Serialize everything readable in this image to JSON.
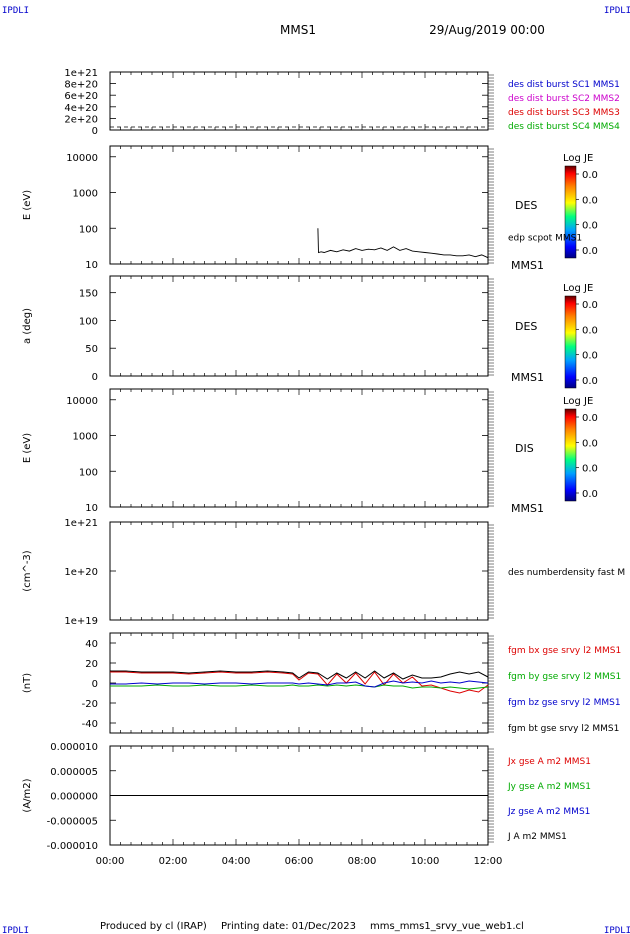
{
  "header": {
    "corner_left": "IPDLI",
    "corner_right": "IPDLI",
    "spacecraft": "MMS1",
    "date": "29/Aug/2019 00:00",
    "footer_producer": "Produced by cl (IRAP)",
    "footer_print": "Printing date: 01/Dec/2023",
    "footer_file": "mms_mms1_srvy_vue_web1.cl",
    "bottom_left": "IPDLI",
    "bottom_right": "IPDLI"
  },
  "colors": {
    "mms1": "#0000cc",
    "mms2": "#cc00cc",
    "mms3": "#dd0000",
    "mms4": "#00aa00",
    "bx": "#dd0000",
    "by": "#00aa00",
    "bz": "#0000cc",
    "bt": "#000000"
  },
  "chart_data": [
    {
      "type": "line",
      "panel": "burst",
      "yticks": [
        "1e+21",
        "8e+20",
        "6e+20",
        "4e+20",
        "2e+20",
        "0"
      ],
      "ylim": [
        0,
        1e+21
      ],
      "series": [],
      "legend": [
        {
          "label": "des dist burst SC1 MMS1",
          "color": "#0000cc"
        },
        {
          "label": "des dist burst SC2 MMS2",
          "color": "#cc00cc"
        },
        {
          "label": "des dist burst SC3 MMS3",
          "color": "#dd0000"
        },
        {
          "label": "des dist burst SC4 MMS4",
          "color": "#00aa00"
        }
      ]
    },
    {
      "type": "heatmap",
      "panel": "des-energy",
      "ylabel": "E (eV)",
      "scale": "log",
      "yticks": [
        "10000",
        "1000",
        "100",
        "10"
      ],
      "ylim": [
        10,
        20000
      ],
      "label": "DES",
      "sublabel": "MMS1",
      "colorbar_title": "Log JE",
      "colorbar_ticks": [
        "0.0",
        "0.0",
        "0.0",
        "0.0"
      ],
      "overlay_label": "edp scpot MMS1",
      "overlay": {
        "x": [
          6.6,
          6.62,
          6.7,
          6.8,
          7.0,
          7.2,
          7.4,
          7.6,
          7.8,
          8.0,
          8.2,
          8.4,
          8.6,
          8.8,
          9.0,
          9.2,
          9.4,
          9.6,
          9.8,
          10.0,
          10.2,
          10.4,
          10.6,
          10.8,
          11.0,
          11.2,
          11.4,
          11.6,
          11.8,
          12.0
        ],
        "y": [
          100,
          21,
          22,
          21,
          24,
          22,
          25,
          23,
          27,
          24,
          26,
          25,
          28,
          24,
          30,
          24,
          27,
          23,
          22,
          21,
          20,
          19,
          18,
          18,
          17,
          17,
          18,
          16,
          18,
          15
        ]
      }
    },
    {
      "type": "heatmap",
      "panel": "des-pitch",
      "ylabel": "a (deg)",
      "yticks": [
        "150",
        "100",
        "50",
        "0"
      ],
      "ylim": [
        0,
        180
      ],
      "label": "DES",
      "sublabel": "MMS1",
      "colorbar_title": "Log JE",
      "colorbar_ticks": [
        "0.0",
        "0.0",
        "0.0",
        "0.0"
      ]
    },
    {
      "type": "heatmap",
      "panel": "dis-energy",
      "ylabel": "E (eV)",
      "scale": "log",
      "yticks": [
        "10000",
        "1000",
        "100",
        "10"
      ],
      "ylim": [
        10,
        20000
      ],
      "label": "DIS",
      "sublabel": "MMS1",
      "colorbar_title": "Log JE",
      "colorbar_ticks": [
        "0.0",
        "0.0",
        "0.0",
        "0.0"
      ]
    },
    {
      "type": "line",
      "panel": "density",
      "ylabel": "(cm^-3)",
      "scale": "log",
      "yticks": [
        "1e+21",
        "1e+20",
        "1e+19"
      ],
      "ylim": [
        1e+19,
        1e+21
      ],
      "label": "des numberdensity fast M",
      "series": []
    },
    {
      "type": "line",
      "panel": "fgm",
      "ylabel": "(nT)",
      "yticks": [
        "40",
        "20",
        "0",
        "-20",
        "-40"
      ],
      "ylim": [
        -50,
        50
      ],
      "x": [
        0.0,
        0.5,
        1.0,
        1.5,
        2.0,
        2.5,
        3.0,
        3.5,
        4.0,
        4.5,
        5.0,
        5.5,
        5.8,
        6.0,
        6.3,
        6.6,
        6.9,
        7.2,
        7.5,
        7.8,
        8.1,
        8.4,
        8.7,
        9.0,
        9.3,
        9.6,
        9.9,
        10.2,
        10.5,
        10.8,
        11.1,
        11.4,
        11.7,
        12.0
      ],
      "series": [
        {
          "name": "fgm bx gse srvy l2 MMS1",
          "color": "#dd0000",
          "values": [
            11,
            11,
            10,
            10,
            10,
            9,
            10,
            11,
            10,
            10,
            11,
            10,
            9,
            3,
            10,
            9,
            -2,
            9,
            0,
            10,
            -1,
            11,
            -2,
            9,
            0,
            6,
            -3,
            -2,
            -5,
            -8,
            -10,
            -7,
            -9,
            -2
          ]
        },
        {
          "name": "fgm by gse srvy l2 MMS1",
          "color": "#00aa00",
          "values": [
            -3,
            -3,
            -3,
            -2,
            -3,
            -3,
            -2,
            -3,
            -3,
            -2,
            -3,
            -3,
            -2,
            -3,
            -3,
            -2,
            -3,
            -2,
            -3,
            -2,
            -3,
            -4,
            -2,
            -3,
            -3,
            -5,
            -4,
            -4,
            -5,
            -4,
            -5,
            -6,
            -5,
            -4
          ]
        },
        {
          "name": "fgm bz gse srvy l2 MMS1",
          "color": "#0000cc",
          "values": [
            -1,
            -1,
            0,
            -1,
            0,
            0,
            -1,
            0,
            0,
            -1,
            0,
            0,
            0,
            -1,
            0,
            -1,
            -2,
            0,
            0,
            1,
            -3,
            -4,
            0,
            2,
            0,
            1,
            0,
            2,
            0,
            1,
            0,
            2,
            1,
            0
          ]
        },
        {
          "name": "fgm bt gse srvy l2 MMS1",
          "color": "#000000",
          "values": [
            12,
            12,
            11,
            11,
            11,
            10,
            11,
            12,
            11,
            11,
            12,
            11,
            10,
            5,
            11,
            10,
            4,
            10,
            5,
            11,
            5,
            12,
            5,
            10,
            4,
            8,
            5,
            5,
            6,
            9,
            11,
            9,
            11,
            6
          ]
        }
      ]
    },
    {
      "type": "line",
      "panel": "current",
      "ylabel": "(A/m2)",
      "yticks": [
        "0.000010",
        "0.000005",
        "0.000000",
        "-0.000005",
        "-0.000010"
      ],
      "ylim": [
        -1e-05,
        1e-05
      ],
      "x": [
        0,
        12
      ],
      "series": [
        {
          "name": "Jx gse A m2 MMS1",
          "color": "#dd0000",
          "values": [
            0,
            0
          ]
        },
        {
          "name": "Jy gse A m2 MMS1",
          "color": "#00aa00",
          "values": [
            0,
            0
          ]
        },
        {
          "name": "Jz gse A m2 MMS1",
          "color": "#0000cc",
          "values": [
            0,
            0
          ]
        },
        {
          "name": "J A m2 MMS1",
          "color": "#000000",
          "values": [
            0,
            0
          ]
        }
      ]
    }
  ],
  "xaxis": {
    "ticks": [
      "00:00",
      "02:00",
      "04:00",
      "06:00",
      "08:00",
      "10:00",
      "12:00"
    ],
    "range": [
      0,
      12
    ]
  }
}
